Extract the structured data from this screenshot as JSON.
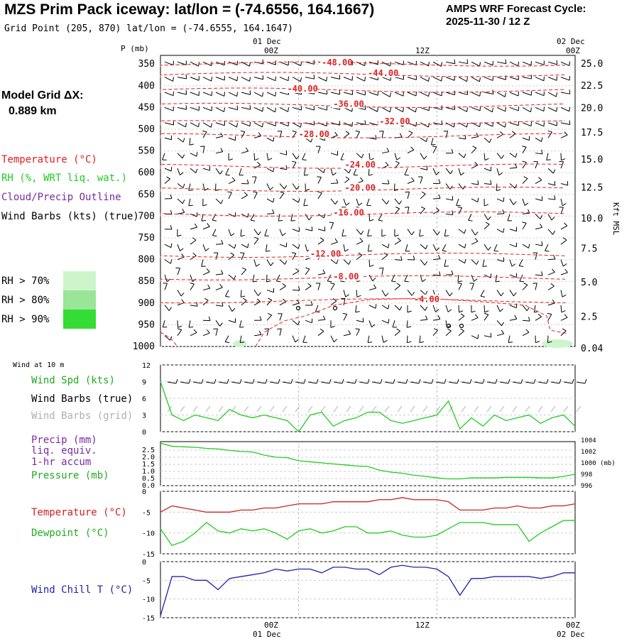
{
  "header": {
    "title": "MZS Prim Pack iceway:  lat/lon = (-74.6556, 164.1667)",
    "cycle_line1": "AMPS WRF Forecast Cycle:",
    "cycle_line2": "2025-11-30 / 12  Z",
    "grid_point": "Grid Point (205, 870) lat/lon = (-74.6555, 164.1647)"
  },
  "left_panel": {
    "model_grid_label": "Model Grid ΔX:",
    "model_grid_value": "0.889 km",
    "legend": [
      {
        "label": "Temperature (°C)",
        "color": "#e02020"
      },
      {
        "label": "RH (%, WRT liq. wat.)",
        "color": "#22cc22"
      },
      {
        "label": "Cloud/Precip Outline",
        "color": "#7a2aa0"
      },
      {
        "label": "Wind Barbs (kts) (true)",
        "color": "#000000"
      }
    ],
    "rh_legend": [
      {
        "label": "RH > 70%",
        "color": "#ccf5cc"
      },
      {
        "label": "RH > 80%",
        "color": "#99e699"
      },
      {
        "label": "RH > 90%",
        "color": "#33dd33"
      }
    ]
  },
  "time_axis": {
    "top_date_left": "01 Dec",
    "top_date_right": "02 Dec",
    "bottom_date_left": "01 Dec",
    "bottom_date_right": "02 Dec",
    "ticks": [
      "00Z",
      "12Z",
      "00Z"
    ],
    "tick_hours": [
      12,
      24,
      36
    ],
    "hours": [
      0,
      36
    ]
  },
  "sounding": {
    "p_label": "P (mb)",
    "right_axis_label": "Kft MSL",
    "pressure_ticks": [
      "350",
      "400",
      "450",
      "500",
      "550",
      "600",
      "650",
      "700",
      "750",
      "800",
      "850",
      "900",
      "950",
      "1000"
    ],
    "height_ticks": [
      "25.0",
      "22.5",
      "20.0",
      "17.5",
      "15.0",
      "12.5",
      "10.0",
      "7.5",
      "5.0",
      "2.5",
      "0.04"
    ],
    "height_tick_pressures": [
      350,
      400,
      452,
      508,
      570,
      635,
      706,
      775,
      853,
      932,
      1005
    ],
    "temp_contours": [
      {
        "label": "-48.00",
        "p": 350,
        "hour": 14
      },
      {
        "label": "-44.00",
        "p": 374,
        "hour": 18
      },
      {
        "label": "-40.00",
        "p": 410,
        "hour": 11
      },
      {
        "label": "-36.00",
        "p": 445,
        "hour": 15
      },
      {
        "label": "-32.00",
        "p": 485,
        "hour": 19
      },
      {
        "label": "-28.00",
        "p": 515,
        "hour": 12
      },
      {
        "label": "-24.00",
        "p": 585,
        "hour": 16
      },
      {
        "label": "-20.00",
        "p": 638,
        "hour": 16
      },
      {
        "label": "-16.00",
        "p": 695,
        "hour": 15
      },
      {
        "label": "-12.00",
        "p": 790,
        "hour": 13
      },
      {
        "label": "-8.00",
        "p": 842,
        "hour": 15
      },
      {
        "label": "-4.00",
        "p": 895,
        "hour": 22
      }
    ]
  },
  "wind_panel": {
    "header": "Wind at 10 m",
    "labels": [
      {
        "text": "Wind Spd (kts)",
        "color": "#22aa22"
      },
      {
        "text": "Wind Barbs (true)",
        "color": "#000000"
      },
      {
        "text": "Wind Barbs (grid)",
        "color": "#b0b0b0"
      }
    ],
    "y_ticks": [
      "12",
      "9",
      "6",
      "3",
      "0"
    ]
  },
  "precip_panel": {
    "labels": [
      {
        "text": "Precip (mm)",
        "color": "#7a2aa0"
      },
      {
        "text": "liq. equiv.",
        "color": "#7a2aa0"
      },
      {
        "text": "1-hr accum",
        "color": "#7a2aa0"
      },
      {
        "text": "Pressure (mb)",
        "color": "#22aa22"
      }
    ],
    "left_ticks": [
      "2.5",
      "2.0",
      "1.5",
      "1.0",
      "0.5",
      "0.0"
    ],
    "right_ticks": [
      "1004",
      "1002",
      "1000 (mb)",
      "998",
      "996"
    ]
  },
  "temp_panel": {
    "labels": [
      {
        "text": "Temperature (°C)",
        "color": "#cc2222"
      },
      {
        "text": "Dewpoint (°C)",
        "color": "#22aa22"
      }
    ],
    "y_ticks": [
      "0",
      "-5",
      "-10",
      "-15"
    ]
  },
  "chill_panel": {
    "labels": [
      {
        "text": "Wind Chill T (°C)",
        "color": "#2222aa"
      }
    ],
    "y_ticks": [
      "0",
      "-5",
      "-10",
      "-15"
    ]
  },
  "chart_data": [
    {
      "type": "line",
      "title": "Wind at 10 m",
      "series": [
        {
          "name": "Wind Spd (kts)",
          "x": [
            0,
            1,
            2,
            3,
            4,
            5,
            6,
            7,
            8,
            9,
            10,
            11,
            12,
            13,
            14,
            15,
            16,
            17,
            18,
            19,
            20,
            21,
            22,
            23,
            24,
            25,
            26,
            27,
            28,
            29,
            30,
            31,
            32,
            33,
            34,
            35,
            36
          ],
          "values": [
            9,
            3,
            2,
            3,
            2.5,
            2,
            4,
            3,
            2.5,
            3,
            2.5,
            2,
            0,
            3,
            3.5,
            1,
            2,
            2.5,
            3.5,
            3.5,
            2,
            1.5,
            2,
            2.5,
            3,
            5.5,
            0.5,
            2.5,
            1,
            3,
            2,
            2.5,
            3,
            1.5,
            2.5,
            3,
            1
          ]
        }
      ],
      "ylim": [
        0,
        12
      ]
    },
    {
      "type": "line",
      "title": "Pressure (mb)",
      "series": [
        {
          "name": "Pressure (mb)",
          "x": [
            0,
            1,
            2,
            3,
            4,
            5,
            6,
            7,
            8,
            9,
            10,
            11,
            12,
            13,
            14,
            15,
            16,
            17,
            18,
            19,
            20,
            21,
            22,
            23,
            24,
            25,
            26,
            27,
            28,
            29,
            30,
            31,
            32,
            33,
            34,
            35,
            36
          ],
          "values": [
            1004.2,
            1003.6,
            1003.5,
            1003.4,
            1003.2,
            1003.1,
            1002.8,
            1002.6,
            1002.5,
            1001.9,
            1001.5,
            1001.4,
            1000.8,
            1000.6,
            1000.4,
            1000.2,
            1000,
            999.8,
            999.7,
            999,
            998.6,
            998.4,
            998,
            997.8,
            997.5,
            997.3,
            997.3,
            997.5,
            997.5,
            997.5,
            997.6,
            997.6,
            997.6,
            997.5,
            997.5,
            997.8,
            998.2
          ]
        }
      ],
      "ylim": [
        996,
        1004.5
      ]
    },
    {
      "type": "line",
      "title": "Temperature / Dewpoint",
      "series": [
        {
          "name": "Temperature (°C)",
          "x": [
            0,
            1,
            2,
            3,
            4,
            5,
            6,
            7,
            8,
            9,
            10,
            11,
            12,
            13,
            14,
            15,
            16,
            17,
            18,
            19,
            20,
            21,
            22,
            23,
            24,
            25,
            26,
            27,
            28,
            29,
            30,
            31,
            32,
            33,
            34,
            35,
            36
          ],
          "values": [
            -5,
            -3.5,
            -4,
            -4.5,
            -5,
            -5,
            -5,
            -4.5,
            -4.5,
            -4,
            -4,
            -3.5,
            -3,
            -3,
            -3,
            -2.5,
            -2.5,
            -2.5,
            -2.5,
            -2,
            -2,
            -1.5,
            -2,
            -2,
            -2,
            -2.5,
            -4.5,
            -4.5,
            -4.5,
            -4,
            -4,
            -3.5,
            -4,
            -4,
            -3.5,
            -3.5,
            -3
          ]
        },
        {
          "name": "Dewpoint (°C)",
          "x": [
            0,
            1,
            2,
            3,
            4,
            5,
            6,
            7,
            8,
            9,
            10,
            11,
            12,
            13,
            14,
            15,
            16,
            17,
            18,
            19,
            20,
            21,
            22,
            23,
            24,
            25,
            26,
            27,
            28,
            29,
            30,
            31,
            32,
            33,
            34,
            35,
            36
          ],
          "values": [
            -9,
            -13,
            -12,
            -10,
            -7.5,
            -9.5,
            -10,
            -9,
            -9.5,
            -9,
            -10,
            -11.5,
            -9.5,
            -9,
            -10,
            -9.5,
            -8.5,
            -8.5,
            -10,
            -10,
            -9.5,
            -10.5,
            -11,
            -11,
            -10.5,
            -9,
            -7.5,
            -7.5,
            -7.5,
            -8,
            -8,
            -8,
            -12,
            -10,
            -8.5,
            -7,
            -7
          ]
        }
      ],
      "ylim": [
        -15,
        0
      ]
    },
    {
      "type": "line",
      "title": "Wind Chill",
      "series": [
        {
          "name": "Wind Chill T (°C)",
          "x": [
            0,
            1,
            2,
            3,
            4,
            5,
            6,
            7,
            8,
            9,
            10,
            11,
            12,
            13,
            14,
            15,
            16,
            17,
            18,
            19,
            20,
            21,
            22,
            23,
            24,
            25,
            26,
            27,
            28,
            29,
            30,
            31,
            32,
            33,
            34,
            35,
            36
          ],
          "values": [
            -14.5,
            -4,
            -4,
            -5,
            -5,
            -7.5,
            -4.5,
            -4,
            -3.5,
            -3,
            -2,
            -2.5,
            -2,
            -2,
            -3,
            -1.5,
            -1.5,
            -2,
            -2,
            -3.5,
            -1.5,
            -1,
            -1.5,
            -1.5,
            -2,
            -4,
            -9,
            -4.5,
            -4.5,
            -4,
            -4,
            -4,
            -4,
            -4.5,
            -4,
            -3,
            -3
          ]
        }
      ],
      "ylim": [
        -15,
        0
      ]
    }
  ]
}
